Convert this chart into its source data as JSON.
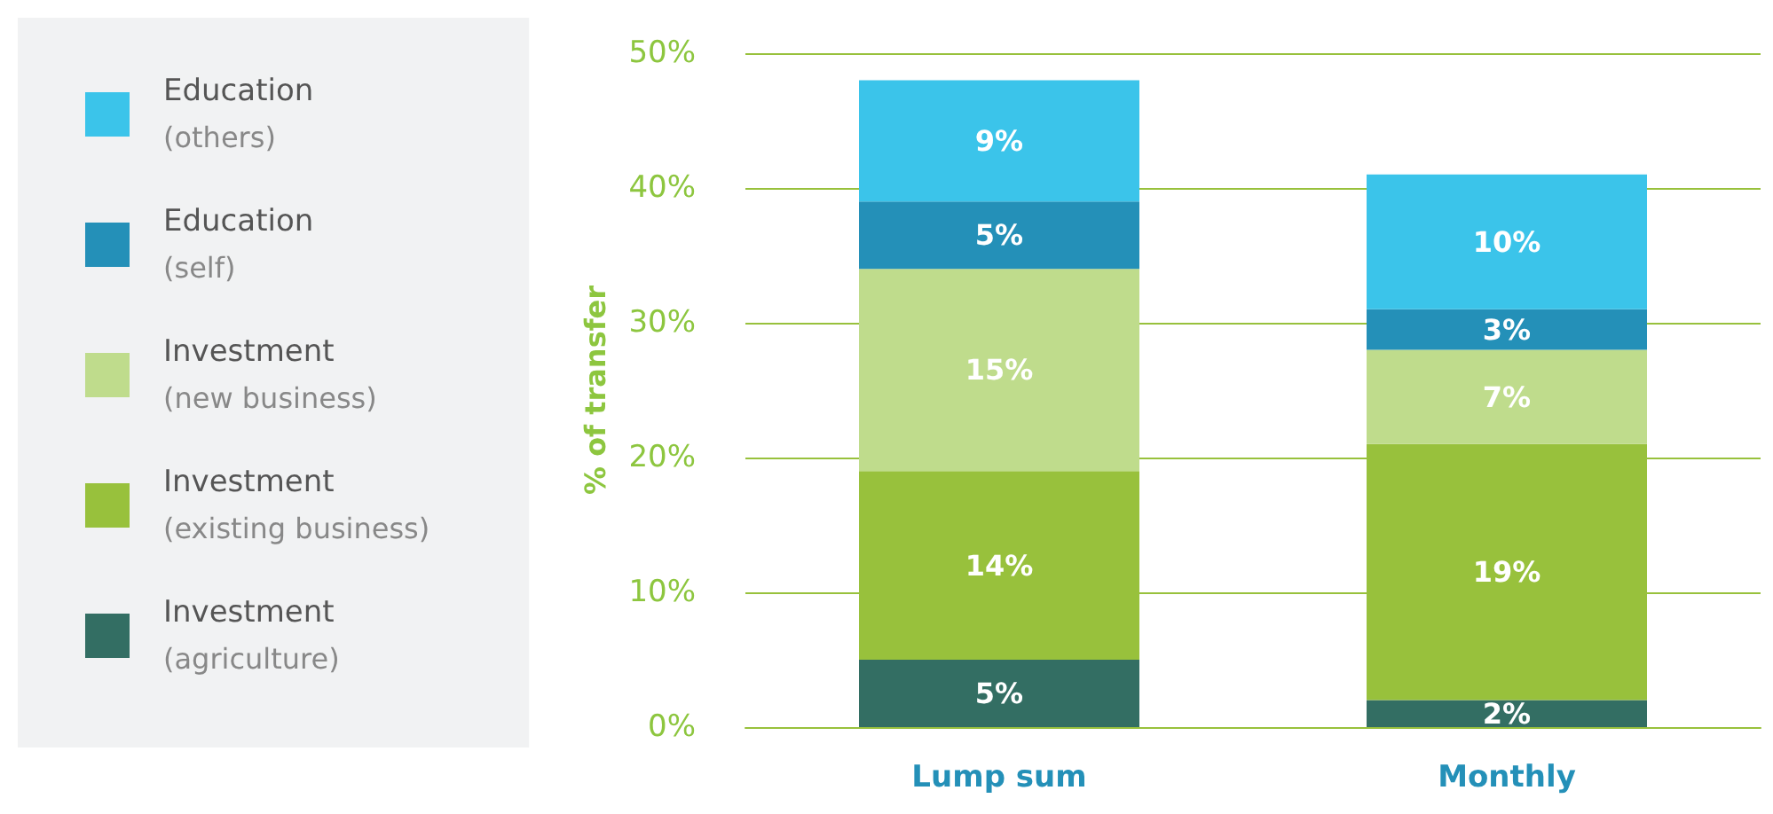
{
  "chart_data": {
    "type": "bar",
    "stacked": true,
    "ylabel": "% of transfer",
    "categories": [
      "Lump sum",
      "Monthly"
    ],
    "series": [
      {
        "name": "Investment\n(agriculture)",
        "color": "#336e63",
        "values": [
          5,
          2
        ],
        "value_labels": [
          "5%",
          "2%"
        ]
      },
      {
        "name": "Investment\n(existing business)",
        "color": "#98c13c",
        "values": [
          14,
          19
        ],
        "value_labels": [
          "14%",
          "19%"
        ]
      },
      {
        "name": "Investment\n(new business)",
        "color": "#bfdc8c",
        "values": [
          15,
          7
        ],
        "value_labels": [
          "15%",
          "7%"
        ]
      },
      {
        "name": "Education\n(self)",
        "color": "#2490b8",
        "values": [
          5,
          3
        ],
        "value_labels": [
          "5%",
          "3%"
        ]
      },
      {
        "name": "Education\n(others)",
        "color": "#3bc4ea",
        "values": [
          9,
          10
        ],
        "value_labels": [
          "9%",
          "10%"
        ]
      }
    ],
    "ylim": [
      0,
      50
    ],
    "yticks": [
      {
        "value": 0,
        "label": "0%"
      },
      {
        "value": 10,
        "label": "10%"
      },
      {
        "value": 20,
        "label": "20%"
      },
      {
        "value": 30,
        "label": "30%"
      },
      {
        "value": 40,
        "label": "40%"
      },
      {
        "value": 50,
        "label": "50%"
      }
    ],
    "grid": "y",
    "legend": "left"
  }
}
